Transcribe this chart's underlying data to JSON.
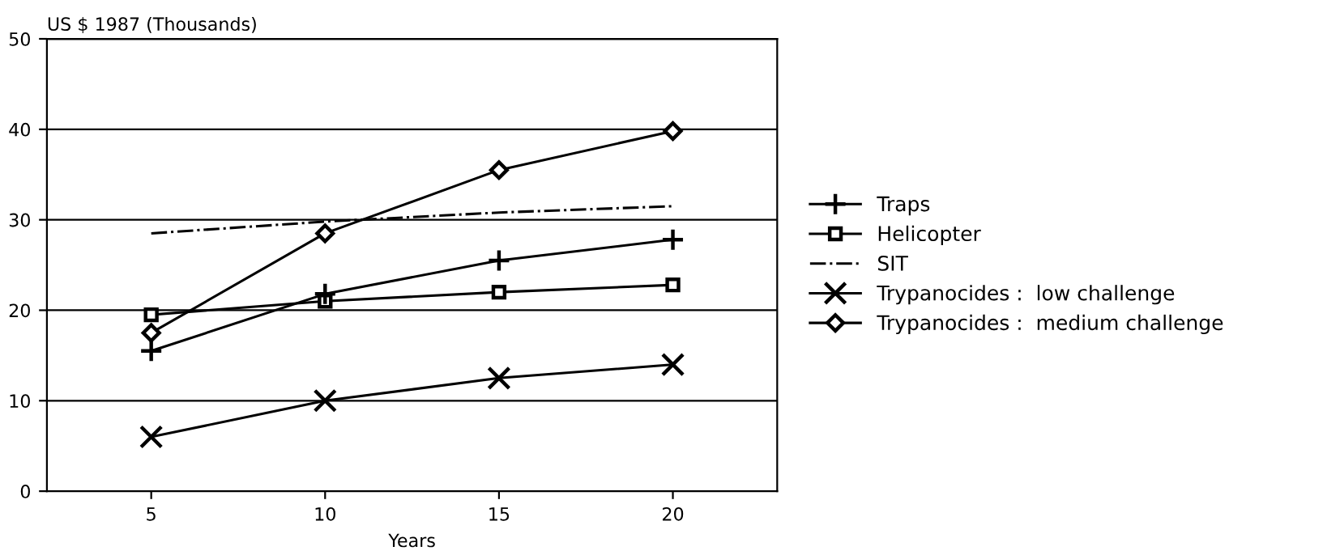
{
  "chart_data": {
    "type": "line",
    "ylabel": "US $ 1987 (Thousands)",
    "xlabel": "Years",
    "x": [
      5,
      10,
      15,
      20
    ],
    "series": [
      {
        "name": "Traps",
        "color": "#000000",
        "marker": "plus",
        "line_style": "solid",
        "values": [
          15.5,
          21.8,
          25.5,
          27.8
        ]
      },
      {
        "name": "Helicopter",
        "color": "#000000",
        "marker": "square",
        "line_style": "solid",
        "values": [
          19.5,
          21,
          22,
          22.8
        ]
      },
      {
        "name": "SIT",
        "color": "#000000",
        "marker": "none",
        "line_style": "dashdot",
        "values": [
          28.5,
          29.8,
          30.8,
          31.5
        ]
      },
      {
        "name": "Trypanocides :  low challenge",
        "color": "#000000",
        "marker": "cross",
        "line_style": "solid",
        "values": [
          6,
          10,
          12.5,
          14
        ]
      },
      {
        "name": "Trypanocides :  medium challenge",
        "color": "#000000",
        "marker": "diamond",
        "line_style": "solid",
        "values": [
          17.5,
          28.5,
          35.5,
          39.8
        ]
      }
    ],
    "xlim": [
      2,
      23
    ],
    "xticks": [
      5,
      10,
      15,
      20
    ],
    "ylim": [
      0,
      50
    ],
    "yticks": [
      0,
      10,
      20,
      30,
      40,
      50
    ],
    "grid": "y",
    "legend": "right"
  }
}
